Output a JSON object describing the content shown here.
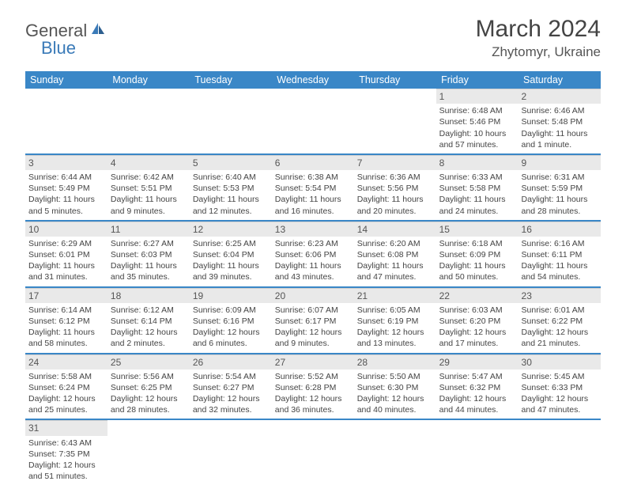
{
  "logo": {
    "part1": "General",
    "part2": "Blue"
  },
  "title": "March 2024",
  "location": "Zhytomyr, Ukraine",
  "colors": {
    "header_bg": "#3a87c7",
    "accent": "#3a7ab8",
    "daynum_bg": "#e9e9e9",
    "text": "#444444"
  },
  "weekdays": [
    "Sunday",
    "Monday",
    "Tuesday",
    "Wednesday",
    "Thursday",
    "Friday",
    "Saturday"
  ],
  "weeks": [
    [
      null,
      null,
      null,
      null,
      null,
      {
        "n": "1",
        "sr": "Sunrise: 6:48 AM",
        "ss": "Sunset: 5:46 PM",
        "dl": "Daylight: 10 hours and 57 minutes."
      },
      {
        "n": "2",
        "sr": "Sunrise: 6:46 AM",
        "ss": "Sunset: 5:48 PM",
        "dl": "Daylight: 11 hours and 1 minute."
      }
    ],
    [
      {
        "n": "3",
        "sr": "Sunrise: 6:44 AM",
        "ss": "Sunset: 5:49 PM",
        "dl": "Daylight: 11 hours and 5 minutes."
      },
      {
        "n": "4",
        "sr": "Sunrise: 6:42 AM",
        "ss": "Sunset: 5:51 PM",
        "dl": "Daylight: 11 hours and 9 minutes."
      },
      {
        "n": "5",
        "sr": "Sunrise: 6:40 AM",
        "ss": "Sunset: 5:53 PM",
        "dl": "Daylight: 11 hours and 12 minutes."
      },
      {
        "n": "6",
        "sr": "Sunrise: 6:38 AM",
        "ss": "Sunset: 5:54 PM",
        "dl": "Daylight: 11 hours and 16 minutes."
      },
      {
        "n": "7",
        "sr": "Sunrise: 6:36 AM",
        "ss": "Sunset: 5:56 PM",
        "dl": "Daylight: 11 hours and 20 minutes."
      },
      {
        "n": "8",
        "sr": "Sunrise: 6:33 AM",
        "ss": "Sunset: 5:58 PM",
        "dl": "Daylight: 11 hours and 24 minutes."
      },
      {
        "n": "9",
        "sr": "Sunrise: 6:31 AM",
        "ss": "Sunset: 5:59 PM",
        "dl": "Daylight: 11 hours and 28 minutes."
      }
    ],
    [
      {
        "n": "10",
        "sr": "Sunrise: 6:29 AM",
        "ss": "Sunset: 6:01 PM",
        "dl": "Daylight: 11 hours and 31 minutes."
      },
      {
        "n": "11",
        "sr": "Sunrise: 6:27 AM",
        "ss": "Sunset: 6:03 PM",
        "dl": "Daylight: 11 hours and 35 minutes."
      },
      {
        "n": "12",
        "sr": "Sunrise: 6:25 AM",
        "ss": "Sunset: 6:04 PM",
        "dl": "Daylight: 11 hours and 39 minutes."
      },
      {
        "n": "13",
        "sr": "Sunrise: 6:23 AM",
        "ss": "Sunset: 6:06 PM",
        "dl": "Daylight: 11 hours and 43 minutes."
      },
      {
        "n": "14",
        "sr": "Sunrise: 6:20 AM",
        "ss": "Sunset: 6:08 PM",
        "dl": "Daylight: 11 hours and 47 minutes."
      },
      {
        "n": "15",
        "sr": "Sunrise: 6:18 AM",
        "ss": "Sunset: 6:09 PM",
        "dl": "Daylight: 11 hours and 50 minutes."
      },
      {
        "n": "16",
        "sr": "Sunrise: 6:16 AM",
        "ss": "Sunset: 6:11 PM",
        "dl": "Daylight: 11 hours and 54 minutes."
      }
    ],
    [
      {
        "n": "17",
        "sr": "Sunrise: 6:14 AM",
        "ss": "Sunset: 6:12 PM",
        "dl": "Daylight: 11 hours and 58 minutes."
      },
      {
        "n": "18",
        "sr": "Sunrise: 6:12 AM",
        "ss": "Sunset: 6:14 PM",
        "dl": "Daylight: 12 hours and 2 minutes."
      },
      {
        "n": "19",
        "sr": "Sunrise: 6:09 AM",
        "ss": "Sunset: 6:16 PM",
        "dl": "Daylight: 12 hours and 6 minutes."
      },
      {
        "n": "20",
        "sr": "Sunrise: 6:07 AM",
        "ss": "Sunset: 6:17 PM",
        "dl": "Daylight: 12 hours and 9 minutes."
      },
      {
        "n": "21",
        "sr": "Sunrise: 6:05 AM",
        "ss": "Sunset: 6:19 PM",
        "dl": "Daylight: 12 hours and 13 minutes."
      },
      {
        "n": "22",
        "sr": "Sunrise: 6:03 AM",
        "ss": "Sunset: 6:20 PM",
        "dl": "Daylight: 12 hours and 17 minutes."
      },
      {
        "n": "23",
        "sr": "Sunrise: 6:01 AM",
        "ss": "Sunset: 6:22 PM",
        "dl": "Daylight: 12 hours and 21 minutes."
      }
    ],
    [
      {
        "n": "24",
        "sr": "Sunrise: 5:58 AM",
        "ss": "Sunset: 6:24 PM",
        "dl": "Daylight: 12 hours and 25 minutes."
      },
      {
        "n": "25",
        "sr": "Sunrise: 5:56 AM",
        "ss": "Sunset: 6:25 PM",
        "dl": "Daylight: 12 hours and 28 minutes."
      },
      {
        "n": "26",
        "sr": "Sunrise: 5:54 AM",
        "ss": "Sunset: 6:27 PM",
        "dl": "Daylight: 12 hours and 32 minutes."
      },
      {
        "n": "27",
        "sr": "Sunrise: 5:52 AM",
        "ss": "Sunset: 6:28 PM",
        "dl": "Daylight: 12 hours and 36 minutes."
      },
      {
        "n": "28",
        "sr": "Sunrise: 5:50 AM",
        "ss": "Sunset: 6:30 PM",
        "dl": "Daylight: 12 hours and 40 minutes."
      },
      {
        "n": "29",
        "sr": "Sunrise: 5:47 AM",
        "ss": "Sunset: 6:32 PM",
        "dl": "Daylight: 12 hours and 44 minutes."
      },
      {
        "n": "30",
        "sr": "Sunrise: 5:45 AM",
        "ss": "Sunset: 6:33 PM",
        "dl": "Daylight: 12 hours and 47 minutes."
      }
    ],
    [
      {
        "n": "31",
        "sr": "Sunrise: 6:43 AM",
        "ss": "Sunset: 7:35 PM",
        "dl": "Daylight: 12 hours and 51 minutes."
      },
      null,
      null,
      null,
      null,
      null,
      null
    ]
  ]
}
